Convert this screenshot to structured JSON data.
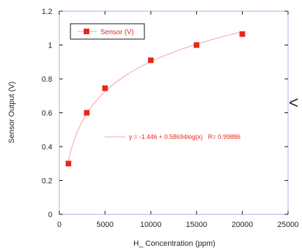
{
  "chart_data": {
    "type": "scatter",
    "xlabel": "H_ Concentration (ppm)",
    "ylabel": "Sensor Output (V)",
    "xlim": [
      0,
      25000
    ],
    "ylim": [
      0,
      1.2
    ],
    "x_ticks": [
      "0",
      "5000",
      "10000",
      "15000",
      "20000",
      "25000"
    ],
    "y_ticks": [
      "0",
      "0.2",
      "0.4",
      "0.6",
      "0.8",
      "1",
      "1.2"
    ],
    "grid": false,
    "legend_position": "top-left",
    "series": [
      {
        "name": "Sensor (V)",
        "x": [
          1000,
          3000,
          5000,
          10000,
          15000,
          20000
        ],
        "y": [
          0.3,
          0.6,
          0.745,
          0.91,
          1.0,
          1.065
        ]
      }
    ],
    "fit": {
      "equation": "y = -1.446 + 0.58694log(x)   R= 0.99886",
      "a": -1.446,
      "b": 0.58694,
      "log_base": 10
    }
  },
  "side_glyph": "<",
  "colors": {
    "marker": "#e8261a",
    "fit_line": "#f4a399",
    "annotation": "#e8261a",
    "frame": "#aaaaee",
    "text": "#222222"
  }
}
